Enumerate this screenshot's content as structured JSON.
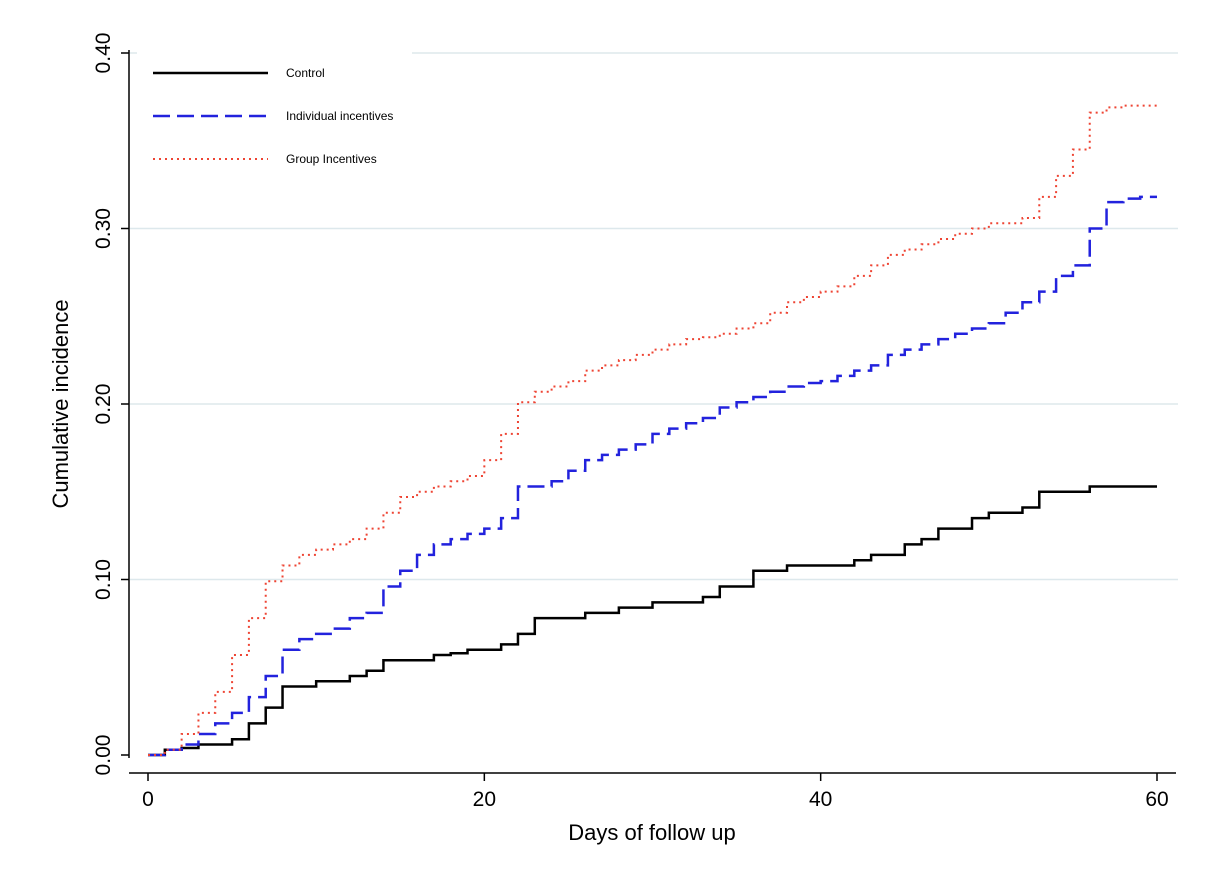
{
  "chart_data": {
    "type": "line",
    "title": "",
    "xlabel": "Days of follow up",
    "ylabel": "Cumulative incidence",
    "xlim": [
      0,
      60
    ],
    "ylim": [
      0,
      0.4
    ],
    "xticks": [
      0,
      20,
      40,
      60
    ],
    "xtick_labels": [
      "0",
      "20",
      "40",
      "60"
    ],
    "yticks": [
      0,
      0.1,
      0.2,
      0.3,
      0.4
    ],
    "ytick_labels": [
      "0.00",
      "0.10",
      "0.20",
      "0.30",
      "0.40"
    ],
    "grid": "horizontal",
    "legend_position": "top-left",
    "series": [
      {
        "name": "Control",
        "color": "#000000",
        "dash": "solid",
        "step": true,
        "x": [
          0,
          1,
          2,
          3,
          5,
          6,
          7,
          8,
          10,
          12,
          13,
          14,
          17,
          18,
          19,
          21,
          22,
          23,
          26,
          28,
          30,
          33,
          34,
          36,
          38,
          42,
          43,
          45,
          46,
          47,
          49,
          50,
          52,
          53,
          56,
          60
        ],
        "y": [
          0,
          0.003,
          0.004,
          0.006,
          0.009,
          0.018,
          0.027,
          0.039,
          0.042,
          0.045,
          0.048,
          0.054,
          0.057,
          0.058,
          0.06,
          0.063,
          0.069,
          0.078,
          0.081,
          0.084,
          0.087,
          0.09,
          0.096,
          0.105,
          0.108,
          0.111,
          0.114,
          0.12,
          0.123,
          0.129,
          0.135,
          0.138,
          0.141,
          0.15,
          0.153,
          0.153
        ]
      },
      {
        "name": "Individual incentives",
        "color": "#2222dd",
        "dash": "dashed",
        "step": true,
        "x": [
          0,
          1,
          2,
          3,
          4,
          5,
          6,
          7,
          8,
          9,
          10,
          11,
          12,
          13,
          14,
          15,
          16,
          17,
          18,
          19,
          20,
          21,
          22,
          24,
          25,
          26,
          27,
          28,
          29,
          30,
          31,
          32,
          33,
          34,
          35,
          36,
          37,
          38,
          39,
          40,
          41,
          42,
          43,
          44,
          45,
          46,
          47,
          48,
          49,
          50,
          51,
          52,
          53,
          54,
          55,
          56,
          57,
          58,
          59,
          60
        ],
        "y": [
          0,
          0.003,
          0.006,
          0.012,
          0.018,
          0.024,
          0.033,
          0.045,
          0.06,
          0.066,
          0.069,
          0.072,
          0.078,
          0.081,
          0.096,
          0.105,
          0.114,
          0.12,
          0.123,
          0.126,
          0.129,
          0.135,
          0.153,
          0.156,
          0.162,
          0.168,
          0.171,
          0.174,
          0.177,
          0.183,
          0.186,
          0.189,
          0.192,
          0.198,
          0.201,
          0.204,
          0.207,
          0.21,
          0.212,
          0.213,
          0.216,
          0.219,
          0.222,
          0.228,
          0.231,
          0.234,
          0.237,
          0.24,
          0.243,
          0.246,
          0.252,
          0.258,
          0.264,
          0.273,
          0.279,
          0.3,
          0.315,
          0.317,
          0.318,
          0.318
        ]
      },
      {
        "name": "Group Incentives",
        "color": "#ee4433",
        "dash": "dotted",
        "step": true,
        "x": [
          0,
          1,
          2,
          3,
          4,
          5,
          6,
          7,
          8,
          9,
          10,
          11,
          12,
          13,
          14,
          15,
          16,
          17,
          18,
          19,
          20,
          21,
          22,
          23,
          24,
          25,
          26,
          27,
          28,
          29,
          30,
          31,
          32,
          33,
          34,
          35,
          36,
          37,
          38,
          39,
          40,
          41,
          42,
          43,
          44,
          45,
          46,
          47,
          48,
          49,
          50,
          51,
          52,
          53,
          54,
          55,
          56,
          57,
          58,
          59,
          60
        ],
        "y": [
          0,
          0.003,
          0.012,
          0.024,
          0.036,
          0.057,
          0.078,
          0.099,
          0.108,
          0.114,
          0.117,
          0.12,
          0.123,
          0.129,
          0.138,
          0.147,
          0.15,
          0.153,
          0.156,
          0.159,
          0.168,
          0.183,
          0.201,
          0.207,
          0.21,
          0.213,
          0.219,
          0.222,
          0.225,
          0.228,
          0.231,
          0.234,
          0.237,
          0.238,
          0.24,
          0.243,
          0.246,
          0.252,
          0.258,
          0.261,
          0.264,
          0.267,
          0.273,
          0.279,
          0.285,
          0.288,
          0.291,
          0.294,
          0.297,
          0.3,
          0.303,
          0.303,
          0.306,
          0.318,
          0.33,
          0.345,
          0.366,
          0.369,
          0.37,
          0.37,
          0.37
        ]
      }
    ]
  }
}
